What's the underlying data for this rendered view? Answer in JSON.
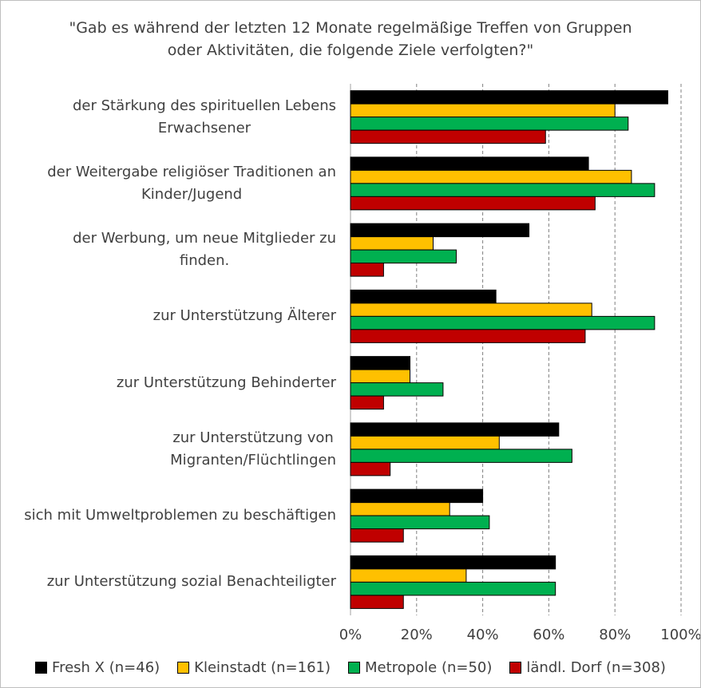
{
  "chart_data": {
    "type": "bar",
    "orientation": "horizontal",
    "title": "\"Gab es während der letzten 12 Monate regelmäßige Treffen von Gruppen\noder Aktivitäten, die folgende Ziele verfolgten?\"",
    "categories": [
      "der Stärkung des spirituellen Lebens\nErwachsener",
      "der Weitergabe religiöser Traditionen an\nKinder/Jugend",
      "der Werbung, um neue Mitglieder zu\nfinden.",
      "zur Unterstützung Älterer",
      "zur Unterstützung Behinderter",
      "zur Unterstützung von\nMigranten/Flüchtlingen",
      "sich mit Umweltproblemen zu beschäftigen",
      "zur Unterstützung sozial Benachteiligter"
    ],
    "series": [
      {
        "name": "Fresh X (n=46)",
        "color": "#000000",
        "values": [
          96,
          72,
          54,
          44,
          18,
          63,
          40,
          62
        ]
      },
      {
        "name": "Kleinstadt (n=161)",
        "color": "#ffc000",
        "values": [
          80,
          85,
          25,
          73,
          18,
          45,
          30,
          35
        ]
      },
      {
        "name": "Metropole (n=50)",
        "color": "#00b050",
        "values": [
          84,
          92,
          32,
          92,
          28,
          67,
          42,
          62
        ]
      },
      {
        "name": "ländl. Dorf (n=308)",
        "color": "#c00000",
        "values": [
          59,
          74,
          10,
          71,
          10,
          12,
          16,
          16
        ]
      }
    ],
    "xlim": [
      0,
      100
    ],
    "xticks": [
      {
        "value": 0,
        "label": "0%"
      },
      {
        "value": 20,
        "label": "20%"
      },
      {
        "value": 40,
        "label": "40%"
      },
      {
        "value": 60,
        "label": "60%"
      },
      {
        "value": 80,
        "label": "80%"
      },
      {
        "value": 100,
        "label": "100%"
      }
    ],
    "grid": true,
    "legend": "bottom"
  }
}
